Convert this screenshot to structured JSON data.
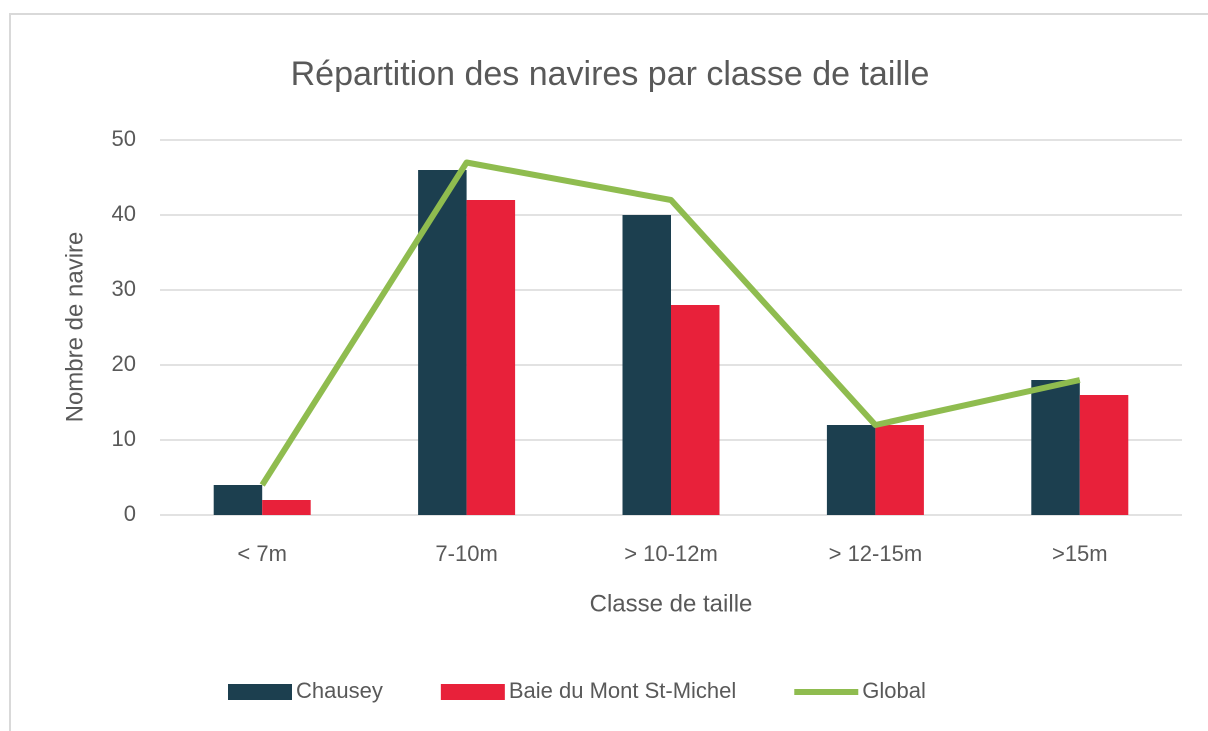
{
  "chart_data": {
    "type": "bar",
    "title": "Répartition des navires par classe de taille",
    "xlabel": "Classe de taille",
    "ylabel": "Nombre de navire",
    "categories": [
      "< 7m",
      "7-10m",
      "> 10-12m",
      "> 12-15m",
      ">15m"
    ],
    "series": [
      {
        "name": "Chausey",
        "color": "#1c3f4f",
        "type": "bar",
        "values": [
          4,
          46,
          40,
          12,
          18
        ]
      },
      {
        "name": "Baie du Mont St-Michel",
        "color": "#e8213a",
        "type": "bar",
        "values": [
          2,
          42,
          28,
          12,
          16
        ]
      },
      {
        "name": "Global",
        "color": "#8fbc4f",
        "type": "line",
        "values": [
          4,
          47,
          42,
          12,
          18
        ]
      }
    ],
    "ylim": [
      0,
      50
    ],
    "yticks": [
      0,
      10,
      20,
      30,
      40,
      50
    ],
    "grid": true,
    "legend": "bottom"
  }
}
